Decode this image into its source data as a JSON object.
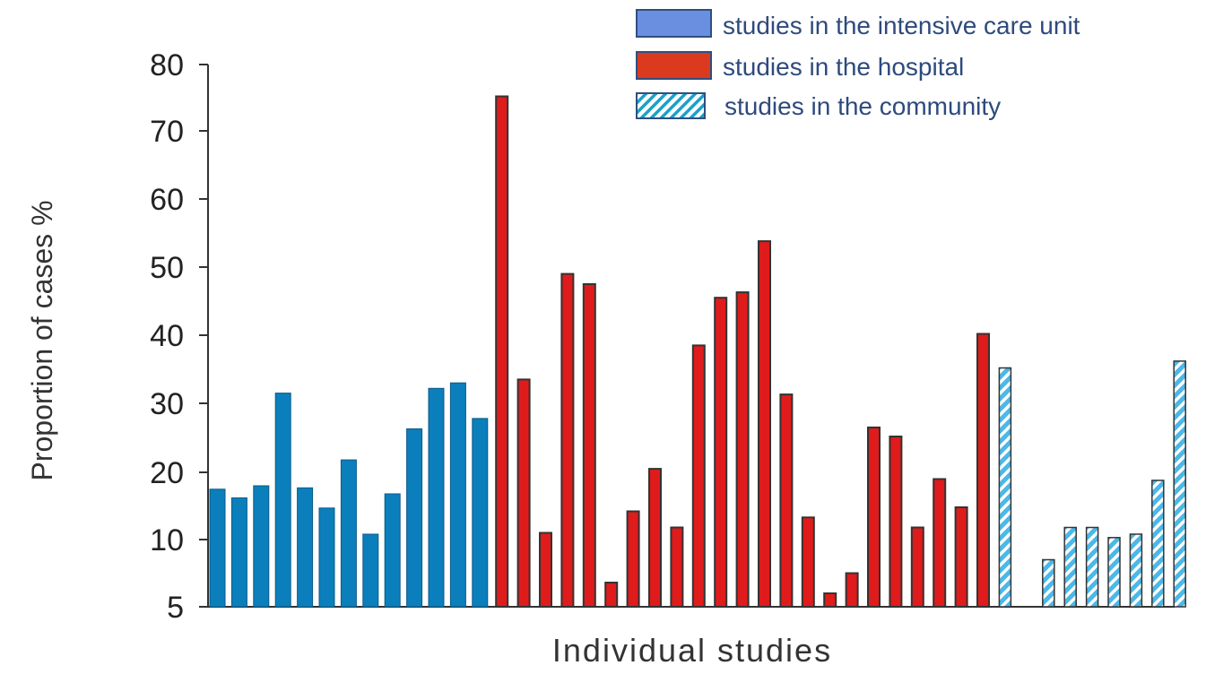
{
  "chart_data": {
    "type": "bar",
    "title": "",
    "xlabel": "Individual studies",
    "ylabel": "Proportion of cases  %",
    "ylim": [
      5,
      80
    ],
    "yticks": [
      5,
      10,
      20,
      30,
      40,
      50,
      60,
      70,
      80
    ],
    "grid": false,
    "legend_position": "top-right",
    "series": [
      {
        "name": "studies in the intensive care unit",
        "color": "#0b7fbb",
        "pattern": "solid",
        "values": [
          17.5,
          16.2,
          18,
          31.5,
          17.7,
          14.7,
          21.8,
          10.8,
          16.8,
          26.3,
          32.2,
          33,
          27.8
        ]
      },
      {
        "name": "studies in the hospital",
        "color": "#e01b1b",
        "pattern": "solid",
        "values": [
          75.2,
          33.5,
          11,
          49,
          47.5,
          6.8,
          14.2,
          20.5,
          11.8,
          38.5,
          45.5,
          46.3,
          53.8,
          31.3,
          13.3,
          6,
          7.5,
          26.5,
          25.2,
          11.8,
          19,
          14.8,
          40.2
        ]
      },
      {
        "name": "studies in the community",
        "color": "#5ec3ee",
        "pattern": "hatched",
        "values": [
          35.2,
          8.5,
          11.8,
          11.8,
          10.3,
          10.8,
          18.8,
          36.2
        ]
      }
    ]
  },
  "legend": {
    "icu_label": "studies in the intensive care unit",
    "hospital_label": "studies in the hospital",
    "community_label": "studies in the community"
  }
}
